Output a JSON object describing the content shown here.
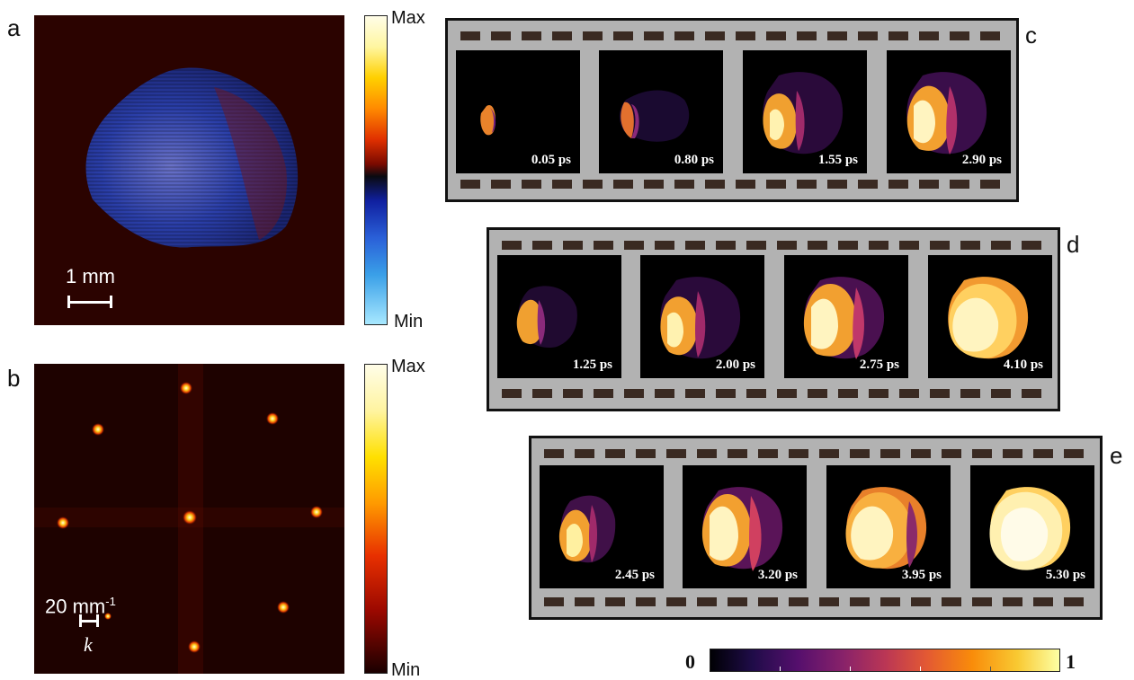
{
  "panels": {
    "a": {
      "letter": "a",
      "scale_label": "1 mm",
      "colorbar": {
        "max": "Max",
        "min": "Min"
      }
    },
    "b": {
      "letter": "b",
      "scale_label": "20 mm",
      "scale_exp": "-1",
      "k_label": "k",
      "colorbar": {
        "max": "Max",
        "min": "Min"
      }
    },
    "c": {
      "letter": "c",
      "times": [
        "0.05 ps",
        "0.80 ps",
        "1.55 ps",
        "2.90 ps"
      ]
    },
    "d": {
      "letter": "d",
      "times": [
        "1.25 ps",
        "2.00 ps",
        "2.75 ps",
        "4.10 ps"
      ]
    },
    "e": {
      "letter": "e",
      "times": [
        "2.45 ps",
        "3.20 ps",
        "3.95 ps",
        "5.30 ps"
      ]
    }
  },
  "bottom_colorbar": {
    "min": "0",
    "max": "1"
  }
}
